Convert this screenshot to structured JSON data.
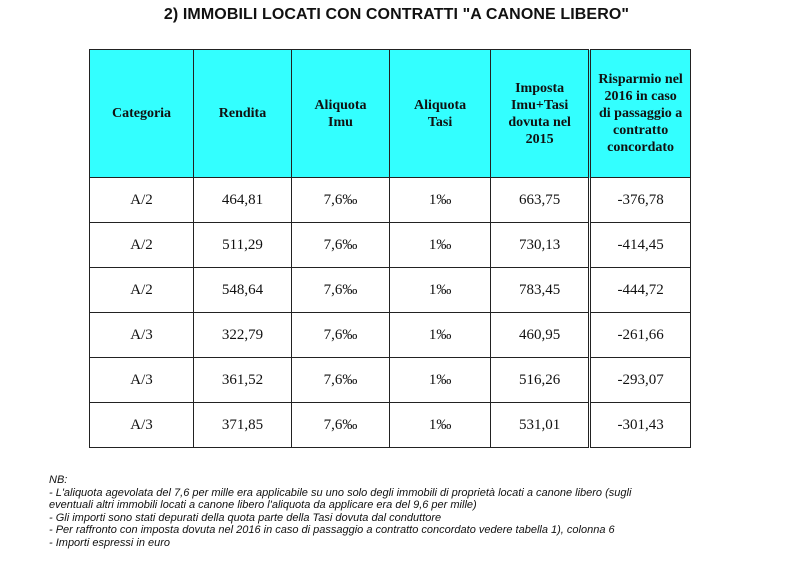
{
  "title": "2) IMMOBILI LOCATI CON CONTRATTI \"A CANONE LIBERO\"",
  "table": {
    "headers": [
      "Categoria",
      "Rendita",
      "Aliquota Imu",
      "Aliquota Tasi",
      "Imposta Imu+Tasi dovuta nel 2015",
      "Risparmio nel 2016 in caso di passaggio a contratto concordato"
    ],
    "rows": [
      [
        "A/2",
        "464,81",
        "7,6‰",
        "1‰",
        "663,75",
        "-376,78"
      ],
      [
        "A/2",
        "511,29",
        "7,6‰",
        "1‰",
        "730,13",
        "-414,45"
      ],
      [
        "A/2",
        "548,64",
        "7,6‰",
        "1‰",
        "783,45",
        "-444,72"
      ],
      [
        "A/3",
        "322,79",
        "7,6‰",
        "1‰",
        "460,95",
        "-261,66"
      ],
      [
        "A/3",
        "361,52",
        "7,6‰",
        "1‰",
        "516,26",
        "-293,07"
      ],
      [
        "A/3",
        "371,85",
        "7,6‰",
        "1‰",
        "531,01",
        "-301,43"
      ]
    ]
  },
  "notes": {
    "heading": "NB:",
    "lines": [
      "- L'aliquota agevolata del 7,6 per mille era applicabile su uno solo degli immobili di proprietà locati a canone libero (sugli",
      "eventuali altri immobili locati a canone libero l'aliquota da applicare era del 9,6 per mille)",
      "- Gli importi sono stati depurati della quota parte della Tasi dovuta dal conduttore",
      "- Per raffronto con imposta dovuta nel 2016 in caso di passaggio a contratto concordato vedere tabella 1), colonna 6",
      "- Importi espressi in euro"
    ]
  },
  "colors": {
    "header_bg": "#33ffff",
    "border": "#222222",
    "text": "#111111"
  }
}
